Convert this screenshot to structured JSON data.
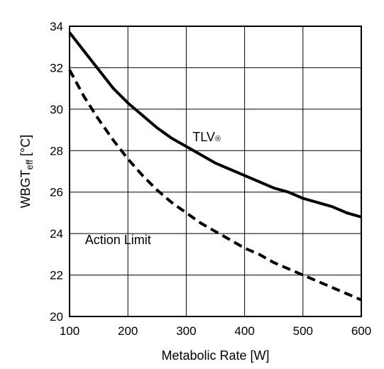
{
  "chart_data": {
    "type": "line",
    "title": "",
    "xlabel": "Metabolic Rate [W]",
    "ylabel": {
      "main": "WBGT",
      "subscript": "eff",
      "unit": " [°C]"
    },
    "xlim": [
      100,
      600
    ],
    "ylim": [
      20,
      34
    ],
    "xticks": [
      100,
      200,
      300,
      400,
      500,
      600
    ],
    "yticks": [
      20,
      22,
      24,
      26,
      28,
      30,
      32,
      34
    ],
    "grid": true,
    "legend": "none",
    "series": [
      {
        "name": "TLV®",
        "style": "solid",
        "color": "#000000",
        "x": [
          100,
          125,
          150,
          175,
          200,
          225,
          250,
          275,
          300,
          325,
          350,
          375,
          400,
          425,
          450,
          475,
          500,
          525,
          550,
          575,
          600
        ],
        "y": [
          33.7,
          32.8,
          31.9,
          31.0,
          30.3,
          29.7,
          29.1,
          28.6,
          28.2,
          27.8,
          27.4,
          27.1,
          26.8,
          26.5,
          26.2,
          26.0,
          25.7,
          25.5,
          25.3,
          25.0,
          24.8
        ]
      },
      {
        "name": "Action Limit",
        "style": "dashed",
        "color": "#000000",
        "x": [
          100,
          125,
          150,
          175,
          200,
          225,
          250,
          275,
          300,
          325,
          350,
          375,
          400,
          425,
          450,
          475,
          500,
          525,
          550,
          575,
          600
        ],
        "y": [
          31.9,
          30.6,
          29.5,
          28.5,
          27.6,
          26.8,
          26.1,
          25.5,
          25.0,
          24.5,
          24.1,
          23.7,
          23.3,
          23.0,
          22.6,
          22.3,
          22.0,
          21.7,
          21.4,
          21.1,
          20.8
        ]
      }
    ],
    "annotations": [
      {
        "text": "TLV",
        "suffix": "®",
        "x": 335,
        "y": 28.45
      },
      {
        "text": "Action Limit",
        "x": 183,
        "y": 23.5
      }
    ]
  }
}
